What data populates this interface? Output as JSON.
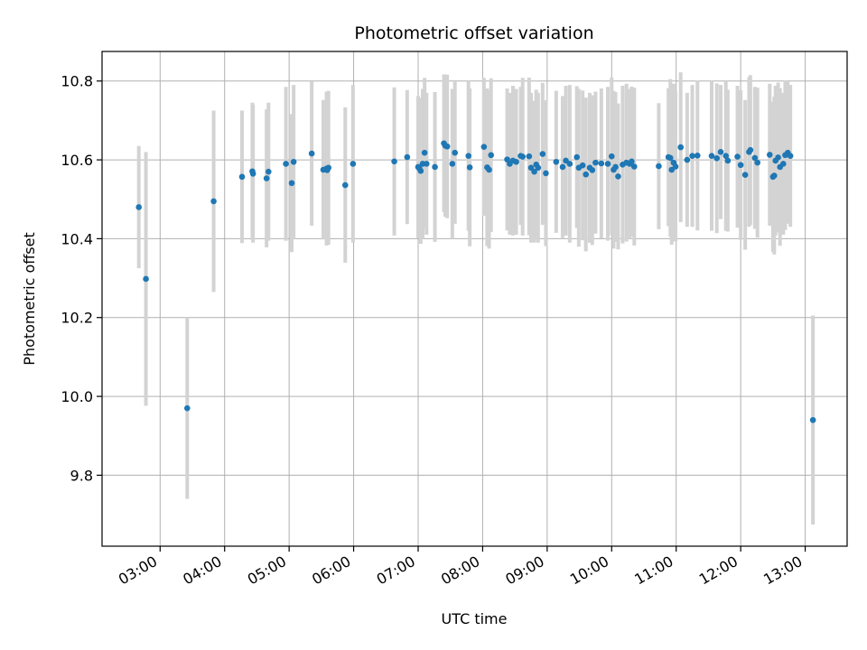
{
  "chart_data": {
    "type": "scatter",
    "title": "Photometric offset variation",
    "xlabel": "UTC time",
    "ylabel": "Photometric offset",
    "x_unit": "hours UTC",
    "xlim": [
      2.1,
      13.65
    ],
    "ylim": [
      9.62,
      10.875
    ],
    "grid": true,
    "x_ticks": [
      {
        "value": 3,
        "label": "03:00"
      },
      {
        "value": 4,
        "label": "04:00"
      },
      {
        "value": 5,
        "label": "05:00"
      },
      {
        "value": 6,
        "label": "06:00"
      },
      {
        "value": 7,
        "label": "07:00"
      },
      {
        "value": 8,
        "label": "08:00"
      },
      {
        "value": 9,
        "label": "09:00"
      },
      {
        "value": 10,
        "label": "10:00"
      },
      {
        "value": 11,
        "label": "11:00"
      },
      {
        "value": 12,
        "label": "12:00"
      },
      {
        "value": 13,
        "label": "13:00"
      }
    ],
    "y_ticks": [
      {
        "value": 9.8,
        "label": "9.8"
      },
      {
        "value": 10.0,
        "label": "10.0"
      },
      {
        "value": 10.2,
        "label": "10.2"
      },
      {
        "value": 10.4,
        "label": "10.4"
      },
      {
        "value": 10.6,
        "label": "10.6"
      },
      {
        "value": 10.8,
        "label": "10.8"
      }
    ],
    "marker_color": "#1f77b4",
    "errorbar_color": "#d3d3d3",
    "series": [
      {
        "x": [
          2.67,
          2.78,
          3.42,
          3.83,
          4.27,
          4.43,
          4.44,
          4.65,
          4.68,
          4.95,
          5.04,
          5.07,
          5.35,
          5.53,
          5.58,
          5.59,
          5.61,
          5.87,
          5.99,
          6.63,
          6.83,
          7.0,
          7.02,
          7.04,
          7.07,
          7.1,
          7.13,
          7.26,
          7.4,
          7.42,
          7.45,
          7.53,
          7.57,
          7.78,
          7.8,
          8.02,
          8.07,
          8.1,
          8.13,
          8.38,
          8.42,
          8.47,
          8.52,
          8.59,
          8.62,
          8.72,
          8.75,
          8.8,
          8.83,
          8.86,
          8.93,
          8.98,
          9.14,
          9.24,
          9.29,
          9.35,
          9.46,
          9.49,
          9.55,
          9.6,
          9.66,
          9.7,
          9.75,
          9.84,
          9.94,
          10.0,
          10.03,
          10.06,
          10.1,
          10.17,
          10.23,
          10.28,
          10.31,
          10.35,
          10.73,
          10.88,
          10.91,
          10.93,
          10.96,
          10.99,
          11.07,
          11.17,
          11.25,
          11.33,
          11.55,
          11.63,
          11.69,
          11.77,
          11.8,
          11.95,
          12.0,
          12.07,
          12.13,
          12.15,
          12.22,
          12.26,
          12.45,
          12.5,
          12.52,
          12.54,
          12.58,
          12.61,
          12.66,
          12.69,
          12.73,
          12.77,
          13.12
        ],
        "y": [
          10.48,
          10.298,
          9.97,
          10.495,
          10.557,
          10.571,
          10.565,
          10.553,
          10.57,
          10.59,
          10.541,
          10.595,
          10.616,
          10.575,
          10.578,
          10.574,
          10.58,
          10.536,
          10.59,
          10.596,
          10.607,
          10.582,
          10.578,
          10.572,
          10.59,
          10.618,
          10.59,
          10.582,
          10.642,
          10.636,
          10.634,
          10.59,
          10.618,
          10.61,
          10.581,
          10.633,
          10.581,
          10.575,
          10.612,
          10.601,
          10.59,
          10.598,
          10.595,
          10.61,
          10.608,
          10.609,
          10.58,
          10.57,
          10.588,
          10.58,
          10.615,
          10.566,
          10.595,
          10.582,
          10.598,
          10.59,
          10.607,
          10.58,
          10.586,
          10.563,
          10.58,
          10.574,
          10.593,
          10.591,
          10.59,
          10.609,
          10.575,
          10.582,
          10.558,
          10.588,
          10.593,
          10.59,
          10.596,
          10.583,
          10.584,
          10.607,
          10.605,
          10.575,
          10.593,
          10.583,
          10.632,
          10.6,
          10.61,
          10.611,
          10.61,
          10.604,
          10.62,
          10.61,
          10.598,
          10.608,
          10.587,
          10.562,
          10.62,
          10.625,
          10.605,
          10.593,
          10.613,
          10.557,
          10.56,
          10.598,
          10.606,
          10.582,
          10.59,
          10.612,
          10.618,
          10.61,
          9.94
        ],
        "yerr": [
          0.155,
          0.322,
          0.23,
          0.23,
          0.168,
          0.174,
          0.175,
          0.175,
          0.175,
          0.195,
          0.175,
          0.195,
          0.183,
          0.177,
          0.195,
          0.19,
          0.195,
          0.197,
          0.2,
          0.188,
          0.17,
          0.18,
          0.172,
          0.185,
          0.19,
          0.19,
          0.18,
          0.19,
          0.175,
          0.18,
          0.182,
          0.19,
          0.18,
          0.19,
          0.2,
          0.175,
          0.2,
          0.2,
          0.195,
          0.18,
          0.18,
          0.19,
          0.185,
          0.175,
          0.2,
          0.2,
          0.19,
          0.18,
          0.19,
          0.19,
          0.18,
          0.185,
          0.18,
          0.18,
          0.19,
          0.2,
          0.18,
          0.2,
          0.19,
          0.195,
          0.19,
          0.19,
          0.18,
          0.19,
          0.195,
          0.2,
          0.2,
          0.19,
          0.185,
          0.2,
          0.2,
          0.19,
          0.19,
          0.2,
          0.16,
          0.175,
          0.2,
          0.19,
          0.2,
          0.19,
          0.19,
          0.17,
          0.18,
          0.19,
          0.19,
          0.19,
          0.17,
          0.19,
          0.18,
          0.18,
          0.19,
          0.19,
          0.19,
          0.19,
          0.18,
          0.19,
          0.18,
          0.19,
          0.2,
          0.19,
          0.19,
          0.2,
          0.18,
          0.19,
          0.18,
          0.18,
          0.265
        ]
      }
    ]
  }
}
